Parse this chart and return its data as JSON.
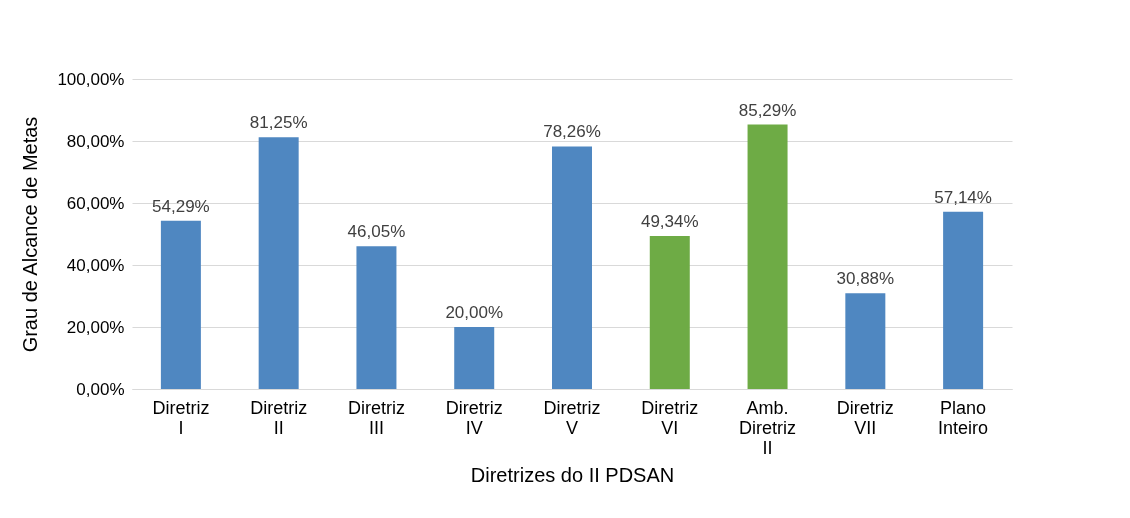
{
  "chart_data": {
    "type": "bar",
    "xlabel": "Diretrizes do II PDSAN",
    "ylabel": "Grau de Alcance de Metas",
    "categories": [
      "Diretriz I",
      "Diretriz II",
      "Diretriz III",
      "Diretriz IV",
      "Diretriz V",
      "Diretriz VI",
      "Amb. Diretriz II",
      "Diretriz VII",
      "Plano Inteiro"
    ],
    "values": [
      54.29,
      81.25,
      46.05,
      20.0,
      78.26,
      49.34,
      85.29,
      30.88,
      57.14
    ],
    "colors": [
      "#4f87c1",
      "#4f87c1",
      "#4f87c1",
      "#4f87c1",
      "#4f87c1",
      "#6eab45",
      "#6eab45",
      "#4f87c1",
      "#4f87c1"
    ],
    "value_labels": [
      "54,29%",
      "81,25%",
      "46,05%",
      "20,00%",
      "78,26%",
      "49,34%",
      "85,29%",
      "30,88%",
      "57,14%"
    ],
    "ylim": [
      0,
      100
    ],
    "yticks": [
      {
        "value": 0,
        "label": "0,00%"
      },
      {
        "value": 20,
        "label": "20,00%"
      },
      {
        "value": 40,
        "label": "40,00%"
      },
      {
        "value": 60,
        "label": "60,00%"
      },
      {
        "value": 80,
        "label": "80,00%"
      },
      {
        "value": 100,
        "label": "100,00%"
      }
    ],
    "grid": "y"
  }
}
